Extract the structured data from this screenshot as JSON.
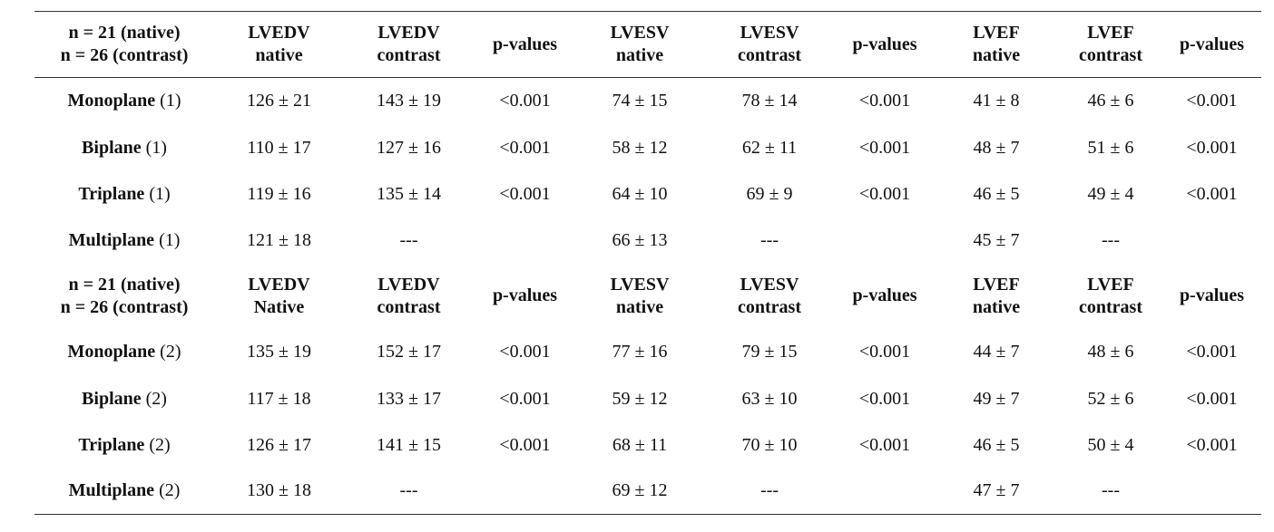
{
  "sections": [
    {
      "header": {
        "group_line1": "n = 21 (native)",
        "group_line2": "n = 26 (contrast)",
        "columns": [
          [
            "LVEDV",
            "native"
          ],
          [
            "LVEDV",
            "contrast"
          ],
          [
            "p-values",
            ""
          ],
          [
            "LVESV",
            "native"
          ],
          [
            "LVESV",
            "contrast"
          ],
          [
            "p-values",
            ""
          ],
          [
            "LVEF",
            "native"
          ],
          [
            "LVEF",
            "contrast"
          ],
          [
            "p-values",
            ""
          ]
        ]
      },
      "rows": [
        {
          "method": "Monoplane",
          "suffix": "(1)",
          "values": [
            "126 ± 21",
            "143 ± 19",
            "<0.001",
            "74 ± 15",
            "78 ± 14",
            "<0.001",
            "41 ± 8",
            "46 ± 6",
            "<0.001"
          ]
        },
        {
          "method": "Biplane",
          "suffix": "(1)",
          "values": [
            "110 ± 17",
            "127 ± 16",
            "<0.001",
            "58 ± 12",
            "62 ± 11",
            "<0.001",
            "48 ± 7",
            "51 ± 6",
            "<0.001"
          ]
        },
        {
          "method": "Triplane",
          "suffix": "(1)",
          "values": [
            "119 ± 16",
            "135 ± 14",
            "<0.001",
            "64 ± 10",
            "69 ± 9",
            "<0.001",
            "46 ± 5",
            "49 ± 4",
            "<0.001"
          ]
        },
        {
          "method": "Multiplane",
          "suffix": "(1)",
          "values": [
            "121 ± 18",
            "---",
            "",
            "66 ± 13",
            "---",
            "",
            "45 ± 7",
            "---",
            ""
          ]
        }
      ]
    },
    {
      "header": {
        "group_line1": "n = 21 (native)",
        "group_line2": "n = 26 (contrast)",
        "columns": [
          [
            "LVEDV",
            "Native"
          ],
          [
            "LVEDV",
            "contrast"
          ],
          [
            "p-values",
            ""
          ],
          [
            "LVESV",
            "native"
          ],
          [
            "LVESV",
            "contrast"
          ],
          [
            "p-values",
            ""
          ],
          [
            "LVEF",
            "native"
          ],
          [
            "LVEF",
            "contrast"
          ],
          [
            "p-values",
            ""
          ]
        ]
      },
      "rows": [
        {
          "method": "Monoplane",
          "suffix": "(2)",
          "values": [
            "135 ± 19",
            "152 ± 17",
            "<0.001",
            "77 ± 16",
            "79 ± 15",
            "<0.001",
            "44 ± 7",
            "48 ± 6",
            "<0.001"
          ]
        },
        {
          "method": "Biplane",
          "suffix": "(2)",
          "values": [
            "117 ± 18",
            "133 ± 17",
            "<0.001",
            "59 ± 12",
            "63 ± 10",
            "<0.001",
            "49 ± 7",
            "52 ± 6",
            "<0.001"
          ]
        },
        {
          "method": "Triplane",
          "suffix": "(2)",
          "values": [
            "126 ± 17",
            "141 ± 15",
            "<0.001",
            "68 ± 11",
            "70 ± 10",
            "<0.001",
            "46 ± 5",
            "50 ± 4",
            "<0.001"
          ]
        },
        {
          "method": "Multiplane",
          "suffix": "(2)",
          "values": [
            "130 ± 18",
            "---",
            "",
            "69 ± 12",
            "---",
            "",
            "47 ± 7",
            "---",
            ""
          ]
        }
      ]
    }
  ]
}
